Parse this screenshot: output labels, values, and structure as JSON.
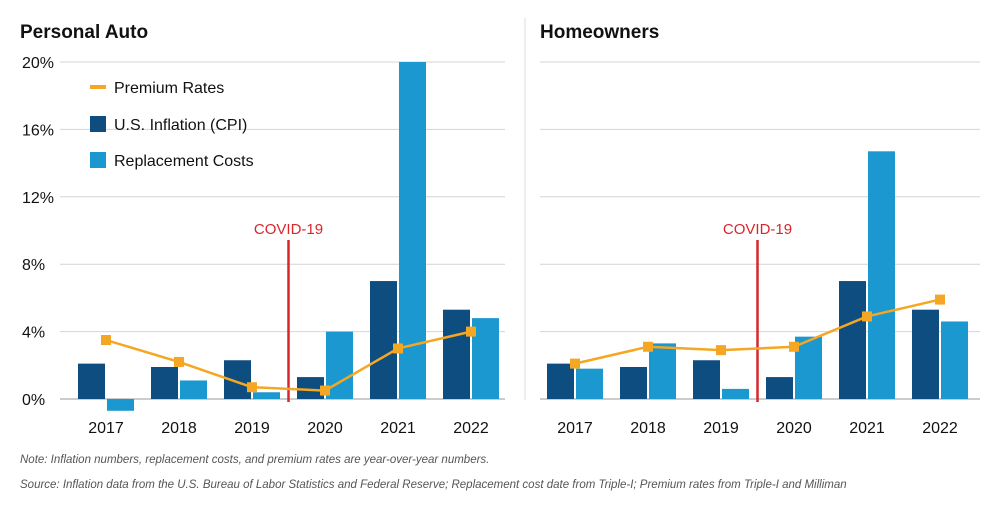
{
  "notes": {
    "note": "Note: Inflation numbers, replacement costs, and premium rates are year-over-year numbers.",
    "source": "Source: Inflation data from the U.S. Bureau of Labor Statistics and Federal Reserve; Replacement cost date from Triple-I; Premium rates from Triple-I and Milliman"
  },
  "colors": {
    "premium": "#f5a623",
    "cpi": "#0e4d80",
    "replacement": "#1b98cf",
    "covid": "#d9262c",
    "grid": "#d4d4d4"
  },
  "chart_data": [
    {
      "type": "bar",
      "title": "Personal Auto",
      "categories": [
        "2017",
        "2018",
        "2019",
        "2020",
        "2021",
        "2022"
      ],
      "ylim": [
        -1,
        20
      ],
      "yticks": [
        "0%",
        "4%",
        "8%",
        "12%",
        "16%",
        "20%"
      ],
      "ytick_values": [
        0,
        4,
        8,
        12,
        16,
        20
      ],
      "grid": true,
      "legend": {
        "placement": "top-left",
        "entries": [
          "Premium Rates",
          "U.S. Inflation (CPI)",
          "Replacement Costs"
        ]
      },
      "annotation": {
        "label": "COVID-19",
        "between": [
          "2019",
          "2020"
        ]
      },
      "series": [
        {
          "name": "U.S. Inflation (CPI)",
          "kind": "bar",
          "values": [
            2.1,
            1.9,
            2.3,
            1.3,
            7.0,
            5.3
          ]
        },
        {
          "name": "Replacement Costs",
          "kind": "bar",
          "values": [
            -0.7,
            1.1,
            0.4,
            4.0,
            20.0,
            4.8
          ]
        },
        {
          "name": "Premium Rates",
          "kind": "line",
          "values": [
            3.5,
            2.2,
            0.7,
            0.5,
            3.0,
            4.0
          ]
        }
      ]
    },
    {
      "type": "bar",
      "title": "Homeowners",
      "categories": [
        "2017",
        "2018",
        "2019",
        "2020",
        "2021",
        "2022"
      ],
      "ylim": [
        -1,
        20
      ],
      "ytick_values": [
        0,
        4,
        8,
        12,
        16,
        20
      ],
      "grid": true,
      "annotation": {
        "label": "COVID-19",
        "between": [
          "2019",
          "2020"
        ]
      },
      "series": [
        {
          "name": "U.S. Inflation (CPI)",
          "kind": "bar",
          "values": [
            2.1,
            1.9,
            2.3,
            1.3,
            7.0,
            5.3
          ]
        },
        {
          "name": "Replacement Costs",
          "kind": "bar",
          "values": [
            1.8,
            3.3,
            0.6,
            3.7,
            14.7,
            4.6
          ]
        },
        {
          "name": "Premium Rates",
          "kind": "line",
          "values": [
            2.1,
            3.1,
            2.9,
            3.1,
            4.9,
            5.9
          ]
        }
      ]
    }
  ]
}
